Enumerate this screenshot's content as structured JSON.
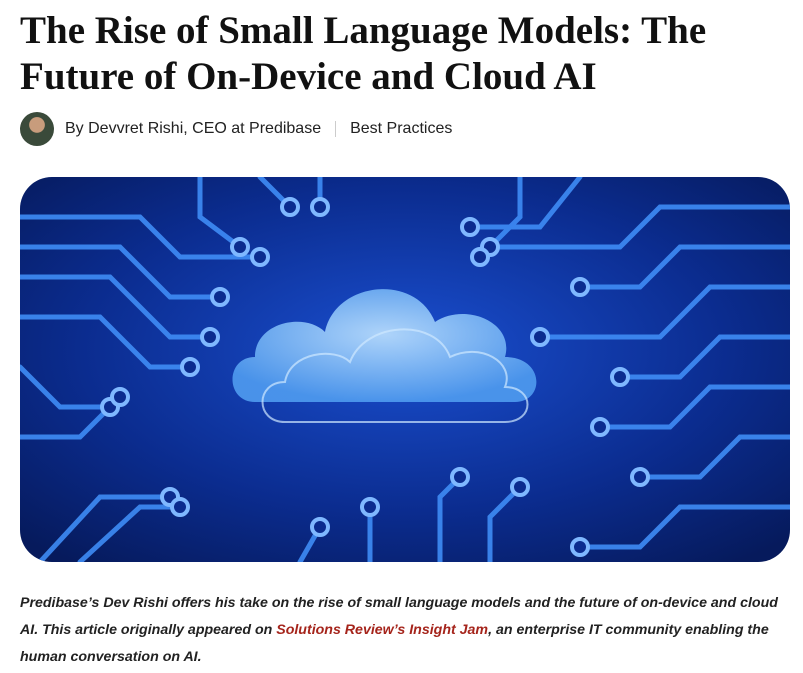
{
  "article": {
    "title": "The Rise of Small Language Models: The Future of On-Device and Cloud AI",
    "byline": "By Devvret Rishi, CEO at Predibase",
    "category": "Best Practices",
    "intro": {
      "before": "Predibase’s Dev Rishi offers his take on the rise of small language models and the future of on-device and cloud AI. This article originally appeared on ",
      "link": "Solutions Review’s Insight Jam",
      "after": ", an enterprise IT community enabling the human conversation on AI."
    }
  }
}
